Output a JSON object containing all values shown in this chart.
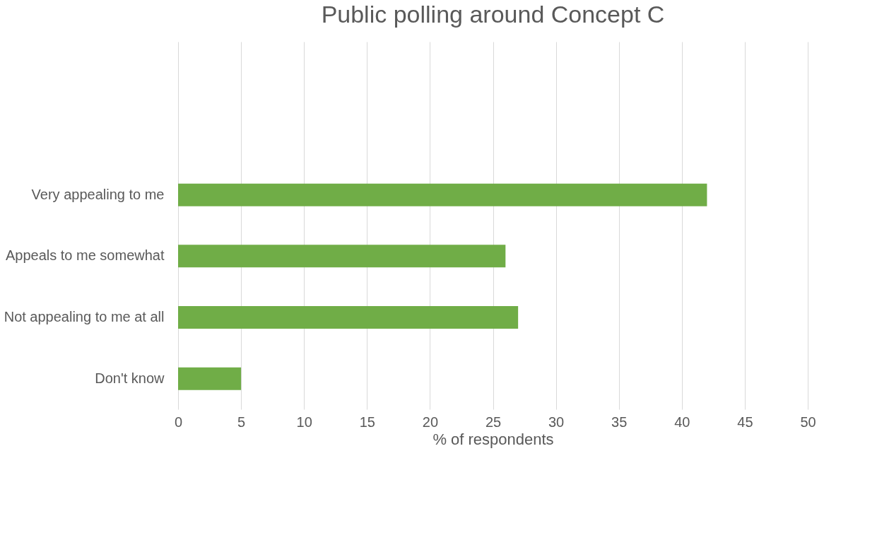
{
  "chart_data": {
    "type": "bar",
    "orientation": "horizontal",
    "title": "Public polling around Concept C",
    "xlabel": "% of respondents",
    "categories": [
      null,
      null,
      "Very appealing to me",
      "Appeals to me somewhat",
      "Not appealing to me at all",
      "Don't know"
    ],
    "values": [
      null,
      null,
      42,
      26,
      27,
      5
    ],
    "color": "#70ad47",
    "xlim": [
      0,
      50
    ],
    "xticks": [
      0,
      5,
      10,
      15,
      20,
      25,
      30,
      35,
      40,
      45,
      50
    ],
    "grid": "x"
  }
}
